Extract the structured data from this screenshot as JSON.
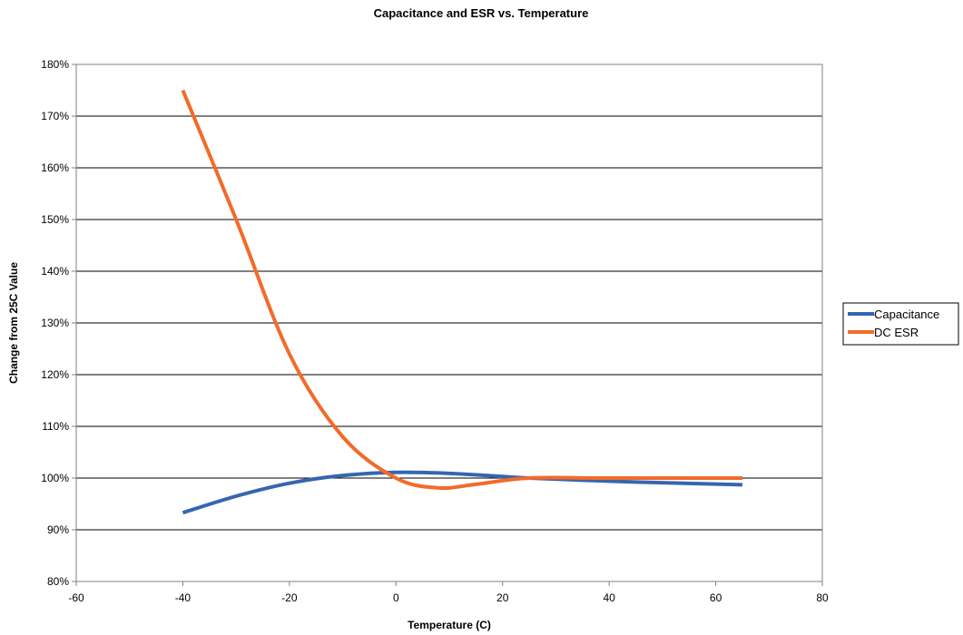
{
  "chart_data": {
    "type": "line",
    "title": "Capacitance and ESR vs. Temperature",
    "xlabel": "Temperature (C)",
    "ylabel": "Change from 25C Value",
    "xlim": [
      -60,
      80
    ],
    "ylim": [
      80,
      180
    ],
    "x_ticks": [
      "-60",
      "-40",
      "-20",
      "0",
      "20",
      "40",
      "60",
      "80"
    ],
    "y_ticks": [
      "80%",
      "90%",
      "100%",
      "110%",
      "120%",
      "130%",
      "140%",
      "150%",
      "160%",
      "170%",
      "180%"
    ],
    "grid": "horizontal",
    "legend_position": "right",
    "series": [
      {
        "name": "Capacitance",
        "color": "#3566b0",
        "x": [
          -40,
          -30,
          -20,
          -10,
          0,
          10,
          20,
          25,
          40,
          50,
          65
        ],
        "y": [
          93.3,
          96.5,
          99.0,
          100.5,
          101.1,
          100.9,
          100.3,
          100.0,
          99.4,
          99.1,
          98.7
        ]
      },
      {
        "name": "DC ESR",
        "color": "#f26b2a",
        "x": [
          -40,
          -30,
          -20,
          -10,
          0,
          8,
          15,
          25,
          40,
          65
        ],
        "y": [
          175,
          150,
          124,
          108,
          100,
          98.1,
          98.8,
          100,
          100,
          100
        ]
      }
    ]
  }
}
